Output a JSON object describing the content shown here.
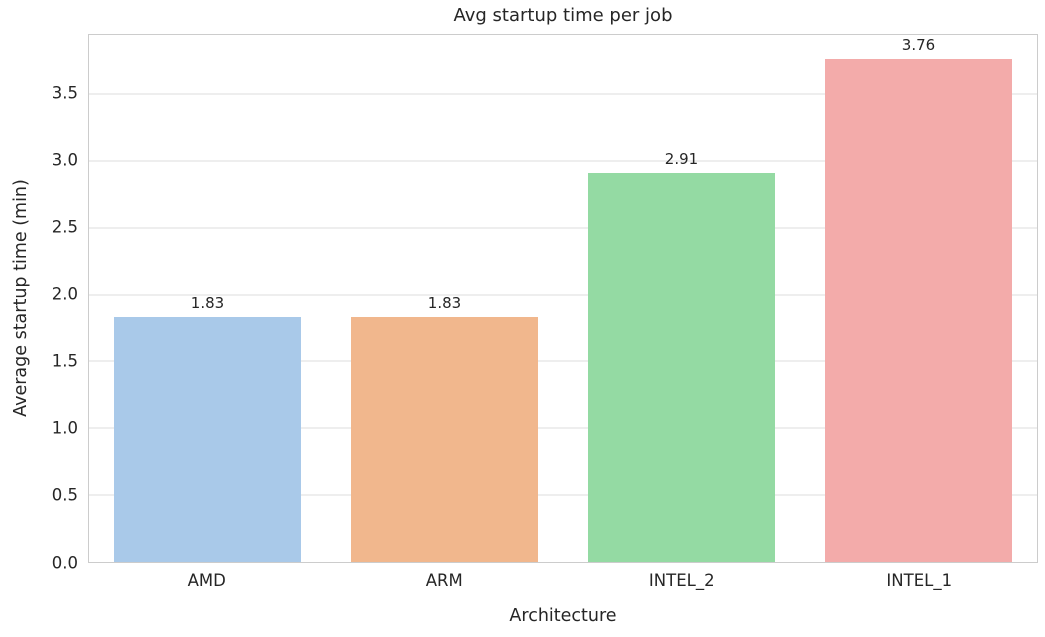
{
  "chart_data": {
    "type": "bar",
    "title": "Avg startup time per job",
    "xlabel": "Architecture",
    "ylabel": "Average startup time (min)",
    "categories": [
      "AMD",
      "ARM",
      "INTEL_2",
      "INTEL_1"
    ],
    "values": [
      1.83,
      1.83,
      2.91,
      3.76
    ],
    "value_labels": [
      "1.83",
      "1.83",
      "2.91",
      "3.76"
    ],
    "bar_colors": [
      "#a9c9e9",
      "#f1b78d",
      "#94daa3",
      "#f3abaa"
    ],
    "ylim": [
      0,
      3.94
    ],
    "yticks": [
      0.0,
      0.5,
      1.0,
      1.5,
      2.0,
      2.5,
      3.0,
      3.5
    ],
    "ytick_labels": [
      "0.0",
      "0.5",
      "1.0",
      "1.5",
      "2.0",
      "2.5",
      "3.0",
      "3.5"
    ],
    "grid": "horizontal-gridlines-on",
    "legend": "none",
    "style_colors": {
      "grid": "#dcdcdc",
      "spine": "#cccccc",
      "text": "#262626",
      "background": "#ffffff"
    }
  }
}
